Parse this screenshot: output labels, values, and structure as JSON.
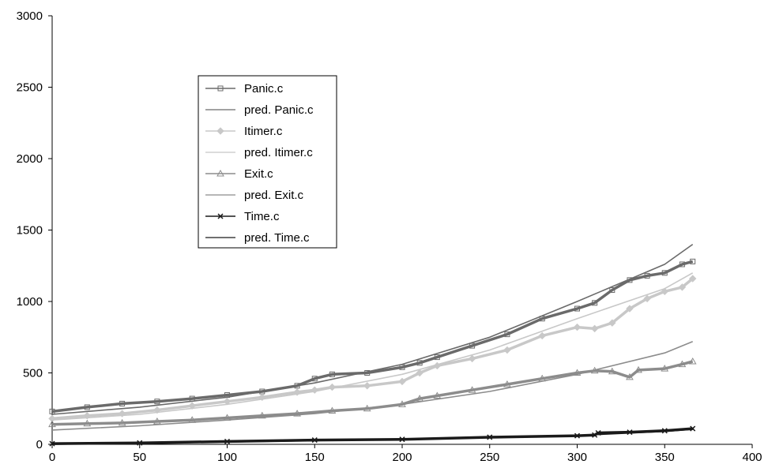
{
  "chart_data": {
    "type": "line",
    "title": "",
    "xlabel": "",
    "ylabel": "",
    "xlim": [
      0,
      400
    ],
    "ylim": [
      0,
      3000
    ],
    "x_ticks": [
      0,
      50,
      100,
      150,
      200,
      250,
      300,
      350,
      400
    ],
    "y_ticks": [
      0,
      500,
      1000,
      1500,
      2000,
      2500,
      3000
    ],
    "grid": false,
    "legend_position": "upper-left",
    "series": [
      {
        "name": "Panic.c",
        "kind": "observed",
        "marker": "square",
        "color": "#6a6a6a",
        "points": [
          [
            0,
            230
          ],
          [
            20,
            260
          ],
          [
            40,
            285
          ],
          [
            60,
            300
          ],
          [
            80,
            320
          ],
          [
            100,
            345
          ],
          [
            120,
            370
          ],
          [
            140,
            410
          ],
          [
            150,
            460
          ],
          [
            160,
            490
          ],
          [
            180,
            500
          ],
          [
            200,
            540
          ],
          [
            210,
            570
          ],
          [
            220,
            610
          ],
          [
            240,
            690
          ],
          [
            260,
            770
          ],
          [
            280,
            880
          ],
          [
            300,
            950
          ],
          [
            310,
            990
          ],
          [
            320,
            1080
          ],
          [
            330,
            1150
          ],
          [
            340,
            1180
          ],
          [
            350,
            1200
          ],
          [
            360,
            1260
          ],
          [
            366,
            1280
          ]
        ]
      },
      {
        "name": "pred. Panic.c",
        "kind": "predicted",
        "marker": "none",
        "color": "#6a6a6a",
        "points": [
          [
            0,
            210
          ],
          [
            50,
            260
          ],
          [
            100,
            330
          ],
          [
            150,
            430
          ],
          [
            200,
            560
          ],
          [
            250,
            750
          ],
          [
            300,
            1000
          ],
          [
            350,
            1260
          ],
          [
            366,
            1400
          ]
        ]
      },
      {
        "name": "Itimer.c",
        "kind": "observed",
        "marker": "diamond",
        "color": "#c8c8c8",
        "points": [
          [
            0,
            180
          ],
          [
            20,
            200
          ],
          [
            40,
            215
          ],
          [
            60,
            240
          ],
          [
            80,
            270
          ],
          [
            100,
            300
          ],
          [
            120,
            330
          ],
          [
            140,
            365
          ],
          [
            150,
            380
          ],
          [
            160,
            400
          ],
          [
            180,
            410
          ],
          [
            200,
            440
          ],
          [
            210,
            500
          ],
          [
            220,
            550
          ],
          [
            240,
            600
          ],
          [
            260,
            660
          ],
          [
            280,
            760
          ],
          [
            300,
            820
          ],
          [
            310,
            810
          ],
          [
            320,
            850
          ],
          [
            330,
            950
          ],
          [
            340,
            1020
          ],
          [
            350,
            1070
          ],
          [
            360,
            1100
          ],
          [
            366,
            1160
          ]
        ]
      },
      {
        "name": "pred. Itimer.c",
        "kind": "predicted",
        "marker": "none",
        "color": "#c8c8c8",
        "points": [
          [
            0,
            170
          ],
          [
            50,
            210
          ],
          [
            100,
            280
          ],
          [
            150,
            370
          ],
          [
            200,
            490
          ],
          [
            250,
            660
          ],
          [
            300,
            880
          ],
          [
            350,
            1090
          ],
          [
            366,
            1200
          ]
        ]
      },
      {
        "name": "Exit.c",
        "kind": "observed",
        "marker": "triangle",
        "color": "#8c8c8c",
        "points": [
          [
            0,
            140
          ],
          [
            20,
            145
          ],
          [
            40,
            150
          ],
          [
            60,
            160
          ],
          [
            80,
            170
          ],
          [
            100,
            185
          ],
          [
            120,
            200
          ],
          [
            140,
            215
          ],
          [
            160,
            235
          ],
          [
            180,
            250
          ],
          [
            200,
            280
          ],
          [
            210,
            320
          ],
          [
            220,
            340
          ],
          [
            240,
            380
          ],
          [
            260,
            420
          ],
          [
            280,
            460
          ],
          [
            300,
            500
          ],
          [
            310,
            515
          ],
          [
            320,
            510
          ],
          [
            330,
            470
          ],
          [
            335,
            520
          ],
          [
            350,
            530
          ],
          [
            360,
            560
          ],
          [
            366,
            580
          ]
        ]
      },
      {
        "name": "pred. Exit.c",
        "kind": "predicted",
        "marker": "none",
        "color": "#8c8c8c",
        "points": [
          [
            0,
            100
          ],
          [
            50,
            130
          ],
          [
            100,
            170
          ],
          [
            150,
            215
          ],
          [
            200,
            280
          ],
          [
            250,
            370
          ],
          [
            300,
            490
          ],
          [
            350,
            640
          ],
          [
            366,
            720
          ]
        ]
      },
      {
        "name": "Time.c",
        "kind": "observed",
        "marker": "x",
        "color": "#1a1a1a",
        "points": [
          [
            0,
            5
          ],
          [
            50,
            10
          ],
          [
            100,
            20
          ],
          [
            150,
            30
          ],
          [
            200,
            35
          ],
          [
            250,
            50
          ],
          [
            300,
            60
          ],
          [
            310,
            65
          ],
          [
            312,
            80
          ],
          [
            330,
            85
          ],
          [
            350,
            95
          ],
          [
            366,
            110
          ]
        ]
      },
      {
        "name": "pred. Time.c",
        "kind": "predicted",
        "marker": "none",
        "color": "#1a1a1a",
        "points": [
          [
            0,
            0
          ],
          [
            50,
            8
          ],
          [
            100,
            16
          ],
          [
            150,
            26
          ],
          [
            200,
            36
          ],
          [
            250,
            48
          ],
          [
            300,
            62
          ],
          [
            350,
            90
          ],
          [
            366,
            105
          ]
        ]
      }
    ]
  }
}
